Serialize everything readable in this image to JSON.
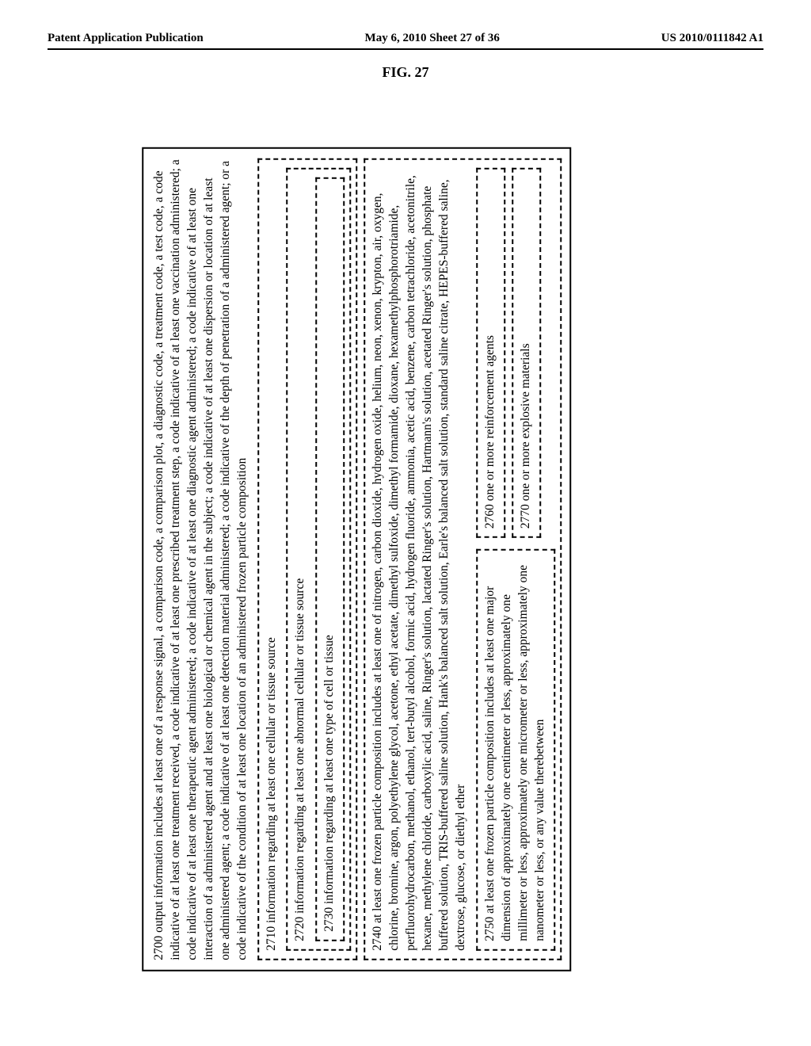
{
  "header": {
    "left": "Patent Application Publication",
    "center": "May 6, 2010  Sheet 27 of 36",
    "right": "US 2010/0111842 A1"
  },
  "figure_label": "FIG. 27",
  "box2700": "2700  output information includes at least one of a response signal, a comparison code, a comparison plot, a diagnostic code, a treatment code, a test code, a code indicative of at least one treatment received, a code indicative of at least one prescribed treatment step, a code indicative of at least one vaccination administered; a code indicative of at least one therapeutic agent administered; a code indicative of at least one diagnostic agent administered; a code indicative of at least one interaction of a administered agent and at least one biological or chemical agent in the subject; a code indicative of at least one dispersion or location of at least one administered agent; a code indicative of at least one detection material administered; a code indicative of the depth of penetration of a administered agent; or a code indicative of the condition of at least one location of an administered frozen particle composition",
  "box2710": "2710 information regarding at least one cellular or tissue source",
  "box2720": "2720 information regarding at least one abnormal cellular or tissue source",
  "box2730": "2730 information regarding at least one type of cell or tissue",
  "box2740": "2740 at least one frozen particle composition includes at least one of nitrogen, carbon dioxide, hydrogen oxide, helium, neon, xenon, krypton, air, oxygen, chlorine, bromine, argon, polyethylene glycol, acetone, ethyl acetate, dimethyl sulfoxide, dimethyl formamide, dioxane, hexamethylphosphorotriamide, perfluorohydrocarbon, methanol, ethanol, tert-butyl alcohol, formic acid, hydrogen fluoride, ammonia, acetic acid, benzene, carbon tetrachloride, acetonitrile, hexane, methylene chloride, carboxylic acid, saline, Ringer's solution, lactated Ringer's solution, Hartmann's solution, acetated Ringer's solution, phosphate buffered solution, TRIS-buffered saline solution, Hank's balanced salt solution, Earle's balanced salt solution, standard saline citrate, HEPES-buffered saline, dextrose, glucose, or diethyl ether",
  "box2750": "2750 at least one frozen particle composition includes at least one major dimension of approximately one centimeter or less, approximately one millimeter or less, approximately one micrometer or less, approximately one nanometer or less, or any value therebetween",
  "box2760": "2760 one or more reinforcement agents",
  "box2770": "2770 one or more explosive materials"
}
